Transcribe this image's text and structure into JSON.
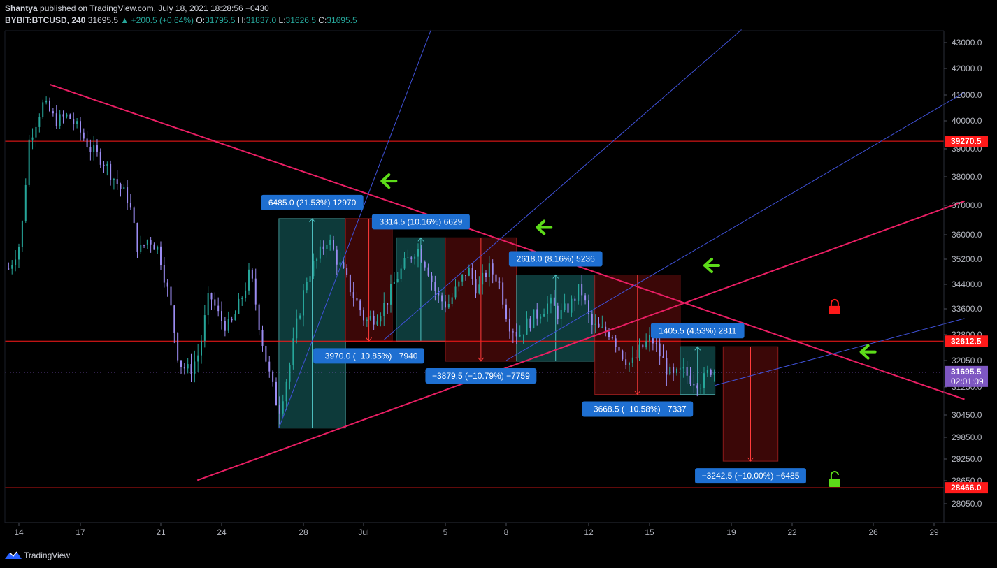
{
  "header": {
    "author": "Shantya",
    "published_text": "published on TradingView.com, July 18, 2021 18:28:56 +0430",
    "symbol": "BYBIT:BTCUSD, 240",
    "last": "31695.5",
    "change": "+200.5 (+0.64%)",
    "o_label": "O:",
    "o": "31795.5",
    "h_label": "H:",
    "h": "31837.0",
    "l_label": "L:",
    "l": "31626.5",
    "c_label": "C:",
    "c": "31695.5"
  },
  "footer": {
    "brand": "TradingView"
  },
  "colors": {
    "background": "#000000",
    "candle_up": "#26a69a",
    "candle_down": "#9b8cf2",
    "trend_red": "#e91e63",
    "hline_red": "#ff1a1a",
    "fan_blue": "#3f51d8",
    "long_fill": "#0d3a3a",
    "short_fill": "#3b0707",
    "label_blue": "#1e6fd1",
    "arrow_green": "#5ddc19"
  },
  "chart_data": {
    "type": "candlestick",
    "symbol": "BYBIT:BTCUSD",
    "timeframe": "240",
    "ylim": [
      27500,
      43500
    ],
    "y_ticks": [
      43000.0,
      42000.0,
      41000.0,
      40000.0,
      39000.0,
      38000.0,
      37000.0,
      36000.0,
      35200.0,
      34400.0,
      33600.0,
      32800.0,
      32050.0,
      31250.0,
      30450.0,
      29850.0,
      29250.0,
      28650.0,
      28050.0
    ],
    "y_tick_labels": [
      "43000.0",
      "42000.0",
      "41000.0",
      "40000.0",
      "39000.0",
      "38000.0",
      "37000.0",
      "36000.0",
      "35200.0",
      "34400.0",
      "33600.0",
      "32800.0",
      "32050.0",
      "31250.0",
      "30450.0",
      "29850.0",
      "29250.0",
      "28650.0",
      "28050.0"
    ],
    "x_ticks": [
      {
        "label": "14",
        "day": 14
      },
      {
        "label": "17",
        "day": 17
      },
      {
        "label": "21",
        "day": 21
      },
      {
        "label": "24",
        "day": 24
      },
      {
        "label": "28",
        "day": 28
      },
      {
        "label": "Jul",
        "day": 31
      },
      {
        "label": "5",
        "day": 35
      },
      {
        "label": "8",
        "day": 38
      },
      {
        "label": "12",
        "day": 42
      },
      {
        "label": "15",
        "day": 45
      },
      {
        "label": "19",
        "day": 49
      },
      {
        "label": "22",
        "day": 52
      },
      {
        "label": "26",
        "day": 56
      },
      {
        "label": "29",
        "day": 59
      }
    ],
    "price_labels": [
      {
        "value": 39270.5,
        "text": "39270.5",
        "color": "#ff1a1a"
      },
      {
        "value": 32612.5,
        "text": "32612.5",
        "color": "#ff1a1a"
      },
      {
        "value": 28466.0,
        "text": "28466.0",
        "color": "#ff1a1a"
      },
      {
        "value": 31695.5,
        "text": "31695.5",
        "countdown": "02:01:09",
        "color": "#7e57c2"
      }
    ],
    "horizontal_lines": [
      39270.5,
      32612.5,
      28466.0
    ],
    "candle_anchors": [
      {
        "day": 13.5,
        "price": 34900
      },
      {
        "day": 14.1,
        "price": 35800
      },
      {
        "day": 14.5,
        "price": 39300
      },
      {
        "day": 15.2,
        "price": 40700
      },
      {
        "day": 15.8,
        "price": 40000
      },
      {
        "day": 16.4,
        "price": 40200
      },
      {
        "day": 16.9,
        "price": 39700
      },
      {
        "day": 17.5,
        "price": 39000
      },
      {
        "day": 18.1,
        "price": 38600
      },
      {
        "day": 18.8,
        "price": 37800
      },
      {
        "day": 19.4,
        "price": 37200
      },
      {
        "day": 19.9,
        "price": 35400
      },
      {
        "day": 20.4,
        "price": 35900
      },
      {
        "day": 20.9,
        "price": 35500
      },
      {
        "day": 21.4,
        "price": 34000
      },
      {
        "day": 21.9,
        "price": 32000
      },
      {
        "day": 22.4,
        "price": 31700
      },
      {
        "day": 22.9,
        "price": 32300
      },
      {
        "day": 23.4,
        "price": 34100
      },
      {
        "day": 23.9,
        "price": 33300
      },
      {
        "day": 24.4,
        "price": 33000
      },
      {
        "day": 24.9,
        "price": 33800
      },
      {
        "day": 25.4,
        "price": 34800
      },
      {
        "day": 25.9,
        "price": 32900
      },
      {
        "day": 26.4,
        "price": 31400
      },
      {
        "day": 26.8,
        "price": 30600
      },
      {
        "day": 27.3,
        "price": 31800
      },
      {
        "day": 27.7,
        "price": 33200
      },
      {
        "day": 28.2,
        "price": 34700
      },
      {
        "day": 28.7,
        "price": 35200
      },
      {
        "day": 29.2,
        "price": 35900
      },
      {
        "day": 29.6,
        "price": 35300
      },
      {
        "day": 30.1,
        "price": 34600
      },
      {
        "day": 30.6,
        "price": 33900
      },
      {
        "day": 31.1,
        "price": 33200
      },
      {
        "day": 31.6,
        "price": 33400
      },
      {
        "day": 32.1,
        "price": 33800
      },
      {
        "day": 32.6,
        "price": 34600
      },
      {
        "day": 33.1,
        "price": 35100
      },
      {
        "day": 33.6,
        "price": 35600
      },
      {
        "day": 34.1,
        "price": 35000
      },
      {
        "day": 34.6,
        "price": 34000
      },
      {
        "day": 35.1,
        "price": 33700
      },
      {
        "day": 35.6,
        "price": 34300
      },
      {
        "day": 36.1,
        "price": 34900
      },
      {
        "day": 36.6,
        "price": 34200
      },
      {
        "day": 37.1,
        "price": 34900
      },
      {
        "day": 37.6,
        "price": 34600
      },
      {
        "day": 38.1,
        "price": 33200
      },
      {
        "day": 38.6,
        "price": 32800
      },
      {
        "day": 39.1,
        "price": 33200
      },
      {
        "day": 39.6,
        "price": 33500
      },
      {
        "day": 40.1,
        "price": 33800
      },
      {
        "day": 40.6,
        "price": 33400
      },
      {
        "day": 41.1,
        "price": 33700
      },
      {
        "day": 41.6,
        "price": 34300
      },
      {
        "day": 42.1,
        "price": 33100
      },
      {
        "day": 42.6,
        "price": 32900
      },
      {
        "day": 43.1,
        "price": 32900
      },
      {
        "day": 43.6,
        "price": 32300
      },
      {
        "day": 44.1,
        "price": 31900
      },
      {
        "day": 44.6,
        "price": 32400
      },
      {
        "day": 45.1,
        "price": 32700
      },
      {
        "day": 45.6,
        "price": 32100
      },
      {
        "day": 46.1,
        "price": 31500
      },
      {
        "day": 46.6,
        "price": 31700
      },
      {
        "day": 47.1,
        "price": 31500
      },
      {
        "day": 47.6,
        "price": 31400
      },
      {
        "day": 48.0,
        "price": 31800
      },
      {
        "day": 48.3,
        "price": 31695
      }
    ],
    "trend_lines": [
      {
        "from": {
          "day": 15.5,
          "price": 41400
        },
        "to": {
          "day": 60.5,
          "price": 30900
        }
      },
      {
        "from": {
          "day": 22.8,
          "price": 28660
        },
        "to": {
          "day": 60.5,
          "price": 37150
        }
      }
    ],
    "fan_lines": [
      {
        "from": {
          "day": 26.8,
          "price": 30100
        },
        "to": {
          "day": 34.3,
          "price": 43500
        }
      },
      {
        "from": {
          "day": 32.0,
          "price": 32650
        },
        "to": {
          "day": 49.5,
          "price": 43500
        }
      },
      {
        "from": {
          "day": 38.0,
          "price": 32050
        },
        "to": {
          "day": 60.5,
          "price": 41100
        }
      },
      {
        "from": {
          "day": 48.2,
          "price": 31300
        },
        "to": {
          "day": 60.5,
          "price": 33300
        }
      }
    ],
    "measurements": [
      {
        "kind": "long",
        "day1": 26.8,
        "day2": 30.1,
        "top": 36550,
        "bottom": 30100,
        "label": "6485.0 (21.53%) 12970",
        "label_side": "top"
      },
      {
        "kind": "short",
        "day1": 30.1,
        "day2": 32.4,
        "top": 36550,
        "bottom": 32610,
        "label": "−3970.0 (−10.85%) −7940",
        "label_side": "bottom"
      },
      {
        "kind": "long",
        "day1": 32.6,
        "day2": 35.0,
        "top": 35900,
        "bottom": 32610,
        "label": "3314.5 (10.16%) 6629",
        "label_side": "top"
      },
      {
        "kind": "short",
        "day1": 35.0,
        "day2": 38.5,
        "top": 35900,
        "bottom": 32030,
        "label": "−3879.5 (−10.79%) −7759",
        "label_side": "bottom"
      },
      {
        "kind": "long",
        "day1": 38.5,
        "day2": 42.3,
        "top": 34700,
        "bottom": 32030,
        "label": "2618.0 (8.16%) 5236",
        "label_side": "top"
      },
      {
        "kind": "short",
        "day1": 42.3,
        "day2": 46.5,
        "top": 34700,
        "bottom": 31040,
        "label": "−3668.5 (−10.58%) −7337",
        "label_side": "bottom"
      },
      {
        "kind": "long",
        "day1": 46.5,
        "day2": 48.2,
        "top": 32450,
        "bottom": 31040,
        "label": "1405.5 (4.53%) 2811",
        "label_side": "top"
      },
      {
        "kind": "short",
        "day1": 48.6,
        "day2": 51.3,
        "top": 32450,
        "bottom": 29190,
        "label": "−3242.5 (−10.00%) −6485",
        "label_side": "bottom"
      }
    ],
    "markers": [
      {
        "type": "arrow-left",
        "day": 31.9,
        "price": 37850,
        "color": "#5ddc19"
      },
      {
        "type": "arrow-left",
        "day": 39.5,
        "price": 36250,
        "color": "#5ddc19"
      },
      {
        "type": "arrow-left",
        "day": 47.7,
        "price": 35000,
        "color": "#5ddc19"
      },
      {
        "type": "arrow-left",
        "day": 55.4,
        "price": 32300,
        "color": "#5ddc19"
      },
      {
        "type": "lock-closed",
        "day": 54.1,
        "price": 33650,
        "color": "#ff1a1a"
      },
      {
        "type": "lock-open",
        "day": 54.1,
        "price": 28670,
        "color": "#5ddc19"
      }
    ]
  }
}
